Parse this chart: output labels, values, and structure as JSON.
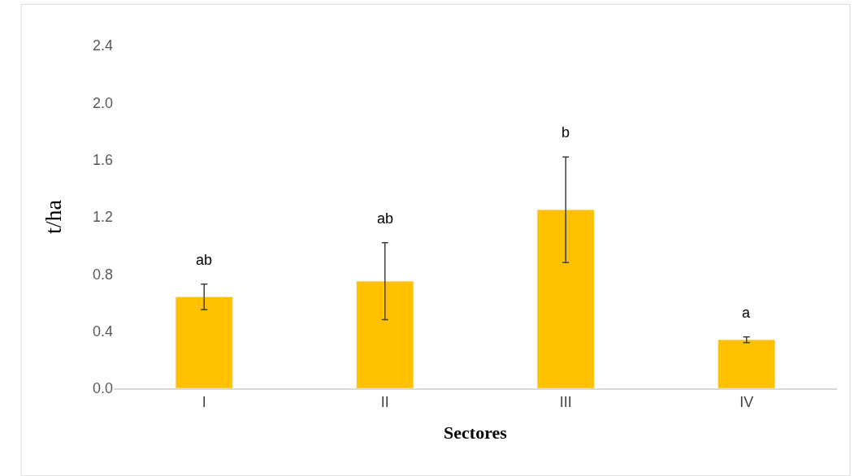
{
  "chart_data": {
    "type": "bar",
    "xlabel": "Sectores",
    "ylabel": "t/ha",
    "categories": [
      "I",
      "II",
      "III",
      "IV"
    ],
    "values": [
      0.64,
      0.75,
      1.25,
      0.34
    ],
    "errors": [
      0.09,
      0.27,
      0.37,
      0.02
    ],
    "color": "#ffc000",
    "ylim": [
      0,
      2.4
    ],
    "yticks": [
      {
        "value": 0,
        "label": "0.0"
      },
      0.4,
      0.8,
      1.2,
      1.6,
      {
        "value": 2,
        "label": "2.0"
      },
      2.4
    ],
    "annotations": [
      "ab",
      "ab",
      "b",
      "a"
    ]
  }
}
